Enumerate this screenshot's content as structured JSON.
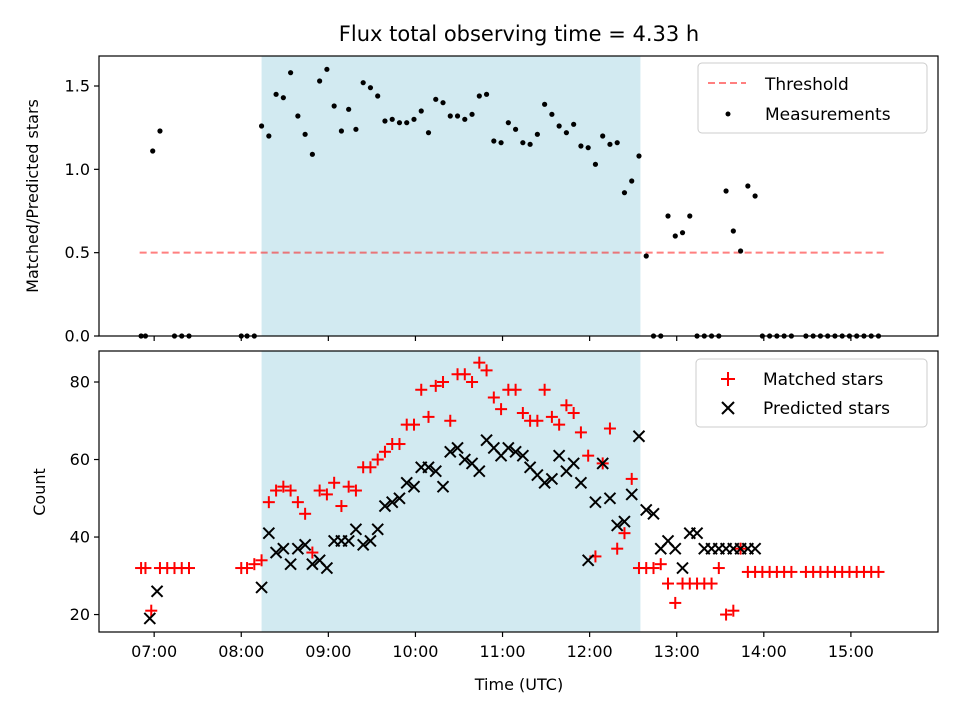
{
  "chart_data": [
    {
      "type": "scatter",
      "title": "Flux total observing time = 4.33 h",
      "xlabel": "",
      "ylabel": "Matched/Predicted stars",
      "xlim": [
        "06:22",
        "16:00"
      ],
      "ylim": [
        0,
        1.68
      ],
      "yticks": [
        "0.0",
        "0.5",
        "1.0",
        "1.5"
      ],
      "ytick_values": [
        0,
        0.5,
        1.0,
        1.5
      ],
      "shaded_span": [
        "08:14",
        "12:35"
      ],
      "shaded_color": "#add8e6",
      "legend_position": "top-right",
      "threshold": {
        "name": "Threshold",
        "y": 0.5,
        "x_range": [
          "06:50",
          "15:25"
        ],
        "color": "#ff0000",
        "style": "dashed"
      },
      "series": [
        {
          "name": "Measurements",
          "color": "#000000",
          "marker": "dot",
          "x": [
            "06:51",
            "06:54",
            "06:59",
            "07:04",
            "07:14",
            "07:19",
            "07:24",
            "08:00",
            "08:04",
            "08:09",
            "08:14",
            "08:19",
            "08:24",
            "08:29",
            "08:34",
            "08:39",
            "08:44",
            "08:49",
            "08:54",
            "08:59",
            "09:04",
            "09:09",
            "09:14",
            "09:19",
            "09:24",
            "09:29",
            "09:34",
            "09:39",
            "09:44",
            "09:49",
            "09:54",
            "09:59",
            "10:04",
            "10:09",
            "10:14",
            "10:19",
            "10:24",
            "10:29",
            "10:34",
            "10:39",
            "10:44",
            "10:49",
            "10:54",
            "10:59",
            "11:04",
            "11:09",
            "11:14",
            "11:19",
            "11:24",
            "11:29",
            "11:34",
            "11:39",
            "11:44",
            "11:49",
            "11:54",
            "11:59",
            "12:04",
            "12:09",
            "12:14",
            "12:19",
            "12:24",
            "12:29",
            "12:34",
            "12:39",
            "12:44",
            "12:49",
            "12:54",
            "12:59",
            "13:04",
            "13:09",
            "13:14",
            "13:19",
            "13:24",
            "13:29",
            "13:34",
            "13:39",
            "13:44",
            "13:49",
            "13:54",
            "13:59",
            "14:04",
            "14:09",
            "14:14",
            "14:19",
            "14:29",
            "14:34",
            "14:39",
            "14:44",
            "14:49",
            "14:54",
            "14:59",
            "15:04",
            "15:09",
            "15:14",
            "15:19"
          ],
          "y": [
            0,
            0,
            1.11,
            1.23,
            0,
            0,
            0,
            0,
            0,
            0,
            1.26,
            1.2,
            1.45,
            1.43,
            1.58,
            1.32,
            1.21,
            1.09,
            1.53,
            1.6,
            1.38,
            1.23,
            1.36,
            1.24,
            1.52,
            1.49,
            1.44,
            1.29,
            1.3,
            1.28,
            1.28,
            1.3,
            1.35,
            1.22,
            1.42,
            1.4,
            1.32,
            1.32,
            1.3,
            1.33,
            1.44,
            1.45,
            1.17,
            1.16,
            1.28,
            1.24,
            1.16,
            1.15,
            1.21,
            1.39,
            1.33,
            1.26,
            1.22,
            1.27,
            1.14,
            1.13,
            1.03,
            1.2,
            1.15,
            1.16,
            0.86,
            0.93,
            1.08,
            0.48,
            0,
            0,
            0.72,
            0.6,
            0.62,
            0.72,
            0,
            0,
            0,
            0,
            0.87,
            0.63,
            0.51,
            0.9,
            0.84,
            0,
            0,
            0,
            0,
            0,
            0,
            0,
            0,
            0,
            0,
            0,
            0,
            0,
            0,
            0,
            0
          ]
        }
      ]
    },
    {
      "type": "scatter",
      "title": "",
      "xlabel": "Time (UTC)",
      "ylabel": "Count",
      "xlim": [
        "06:22",
        "16:00"
      ],
      "ylim": [
        15.5,
        88
      ],
      "yticks": [
        "20",
        "40",
        "60",
        "80"
      ],
      "ytick_values": [
        20,
        40,
        60,
        80
      ],
      "xticks": [
        "07:00",
        "08:00",
        "09:00",
        "10:00",
        "11:00",
        "12:00",
        "13:00",
        "14:00",
        "15:00"
      ],
      "shaded_span": [
        "08:14",
        "12:35"
      ],
      "shaded_color": "#add8e6",
      "legend_position": "top-right",
      "series": [
        {
          "name": "Matched stars",
          "color": "#ff0000",
          "marker": "plus",
          "x": [
            "06:51",
            "06:54",
            "06:58",
            "07:04",
            "07:09",
            "07:14",
            "07:19",
            "07:24",
            "08:00",
            "08:04",
            "08:09",
            "08:14",
            "08:19",
            "08:24",
            "08:29",
            "08:34",
            "08:39",
            "08:44",
            "08:49",
            "08:54",
            "08:59",
            "09:04",
            "09:09",
            "09:14",
            "09:19",
            "09:24",
            "09:29",
            "09:34",
            "09:39",
            "09:44",
            "09:49",
            "09:54",
            "09:59",
            "10:04",
            "10:09",
            "10:14",
            "10:19",
            "10:24",
            "10:29",
            "10:34",
            "10:39",
            "10:44",
            "10:49",
            "10:54",
            "10:59",
            "11:04",
            "11:09",
            "11:14",
            "11:19",
            "11:24",
            "11:29",
            "11:34",
            "11:39",
            "11:44",
            "11:49",
            "11:54",
            "11:59",
            "12:04",
            "12:09",
            "12:14",
            "12:19",
            "12:24",
            "12:29",
            "12:34",
            "12:39",
            "12:44",
            "12:49",
            "12:54",
            "12:59",
            "13:04",
            "13:09",
            "13:14",
            "13:19",
            "13:24",
            "13:29",
            "13:34",
            "13:39",
            "13:44",
            "13:49",
            "13:54",
            "13:59",
            "14:04",
            "14:09",
            "14:14",
            "14:19",
            "14:29",
            "14:34",
            "14:39",
            "14:44",
            "14:49",
            "14:54",
            "14:59",
            "15:04",
            "15:09",
            "15:14",
            "15:19"
          ],
          "y": [
            32,
            32,
            21,
            32,
            32,
            32,
            32,
            32,
            32,
            32,
            33,
            34,
            49,
            52,
            53,
            52,
            49,
            46,
            36,
            52,
            51,
            54,
            48,
            53,
            52,
            58,
            58,
            60,
            62,
            64,
            64,
            69,
            69,
            78,
            71,
            79,
            80,
            70,
            82,
            82,
            80,
            85,
            83,
            76,
            73,
            78,
            78,
            72,
            70,
            70,
            78,
            71,
            69,
            74,
            72,
            67,
            61,
            35,
            59,
            68,
            37,
            41,
            55,
            32,
            32,
            32,
            33,
            28,
            23,
            28,
            28,
            28,
            28,
            28,
            32,
            20,
            21,
            37,
            31,
            31,
            31,
            31,
            31,
            31,
            31,
            31,
            31,
            31,
            31,
            31,
            31,
            31,
            31,
            31,
            31,
            31
          ]
        },
        {
          "name": "Predicted stars",
          "color": "#000000",
          "marker": "x",
          "x": [
            "06:57",
            "07:02",
            "08:14",
            "08:19",
            "08:24",
            "08:29",
            "08:34",
            "08:39",
            "08:44",
            "08:49",
            "08:54",
            "08:59",
            "09:04",
            "09:09",
            "09:14",
            "09:19",
            "09:24",
            "09:29",
            "09:34",
            "09:39",
            "09:44",
            "09:49",
            "09:54",
            "09:59",
            "10:04",
            "10:09",
            "10:14",
            "10:19",
            "10:24",
            "10:29",
            "10:34",
            "10:39",
            "10:44",
            "10:49",
            "10:54",
            "10:59",
            "11:04",
            "11:09",
            "11:14",
            "11:19",
            "11:24",
            "11:29",
            "11:34",
            "11:39",
            "11:44",
            "11:49",
            "11:54",
            "11:59",
            "12:04",
            "12:09",
            "12:14",
            "12:19",
            "12:24",
            "12:29",
            "12:34",
            "12:39",
            "12:44",
            "12:49",
            "12:54",
            "12:59",
            "13:04",
            "13:09",
            "13:14",
            "13:19",
            "13:24",
            "13:29",
            "13:34",
            "13:39",
            "13:44",
            "13:49",
            "13:54"
          ],
          "y": [
            19,
            26,
            27,
            41,
            36,
            37,
            33,
            37,
            38,
            33,
            34,
            32,
            39,
            39,
            39,
            42,
            38,
            39,
            42,
            48,
            49,
            50,
            54,
            53,
            58,
            58,
            57,
            53,
            62,
            63,
            60,
            59,
            57,
            65,
            63,
            61,
            63,
            62,
            61,
            58,
            56,
            54,
            55,
            61,
            57,
            59,
            54,
            34,
            49,
            59,
            50,
            43,
            44,
            51,
            66,
            47,
            46,
            37,
            39,
            37,
            32,
            41,
            41,
            37,
            37,
            37,
            37,
            37,
            37,
            37,
            37
          ]
        }
      ]
    }
  ]
}
